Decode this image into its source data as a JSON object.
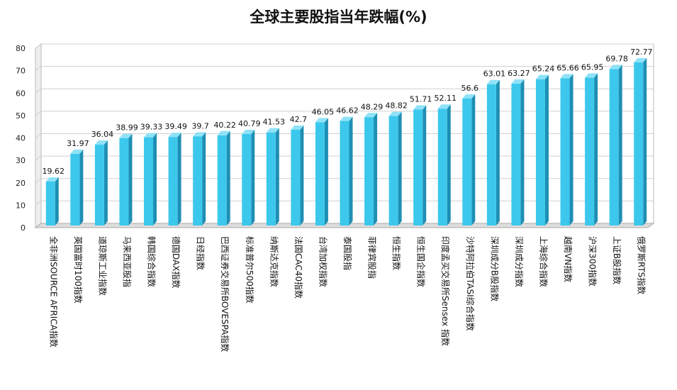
{
  "chart_data": {
    "type": "bar",
    "title": "全球主要股指当年跌幅(%)",
    "xlabel": "",
    "ylabel": "",
    "ylim": [
      0,
      80
    ],
    "yticks": [
      0,
      10,
      20,
      30,
      40,
      50,
      60,
      70,
      80
    ],
    "grid": true,
    "legend": "none",
    "categories": [
      "全非洲SOURCE AFRICA指数",
      "英国富时100指数",
      "道琼斯工业指数",
      "马来西亚股指",
      "韩国综合指数",
      "德国DAX指数",
      "日经指数",
      "巴西证券交易所BOVESPA指数",
      "标准普尔500指数",
      "纳斯达克指数",
      "法国CAC40指数",
      "台湾加权指数",
      "泰国股指",
      "菲律宾股指",
      "恒生指数",
      "恒生国企指数",
      "印度孟买交易所Sensex 指数",
      "沙特阿拉伯TASI综合指数",
      "深圳成分B股指数",
      "深圳成分指数",
      "上海综合指数",
      "越南VN指数",
      "沪深300指数",
      "上证B股指数",
      "俄罗斯RTS指数"
    ],
    "values": [
      19.62,
      31.97,
      36.04,
      38.99,
      39.33,
      39.49,
      39.7,
      40.22,
      40.79,
      41.53,
      42.7,
      46.05,
      46.62,
      48.29,
      48.82,
      51.71,
      52.11,
      56.6,
      63.01,
      63.27,
      65.24,
      65.66,
      65.95,
      69.78,
      72.77
    ],
    "data_labels": [
      "19.62",
      "31.97",
      "36.04",
      "38.99",
      "39.33",
      "39.49",
      "39.7",
      "40.22",
      "40.79",
      "41.53",
      "42.7",
      "46.05",
      "46.62",
      "48.29",
      "48.82",
      "51.71",
      "52.11",
      "56.6",
      "63.01",
      "63.27",
      "65.24",
      "65.66",
      "65.95",
      "69.78",
      "72.77"
    ],
    "colors": {
      "bar_front": "#3cc8ec",
      "bar_side": "#1e8fb4",
      "bar_top": "#8fe2f7",
      "grid": "#d0d0d0",
      "wall_back": "#ffffff",
      "wall_side": "#eeeeee",
      "floor": "#dddddd"
    }
  }
}
